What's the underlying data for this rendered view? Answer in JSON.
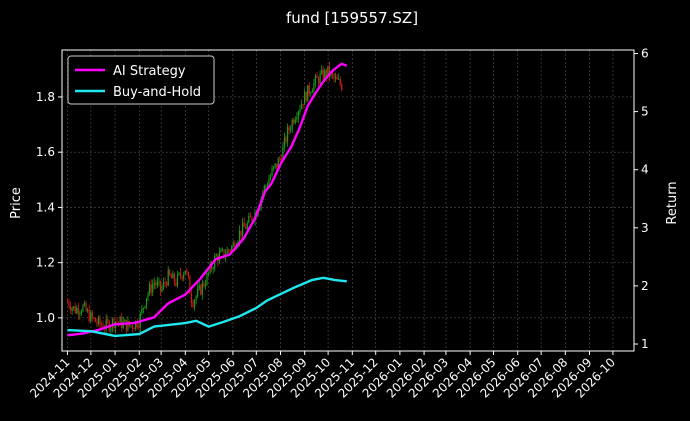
{
  "chart_data": {
    "type": "line",
    "title": "fund [159557.SZ]",
    "xlabel": "",
    "ylabel": "Price",
    "ylabel_right": "Return",
    "x_tick_labels": [
      "2024-11",
      "2024-12",
      "2025-01",
      "2025-02",
      "2025-03",
      "2025-04",
      "2025-05",
      "2025-06",
      "2025-07",
      "2025-08",
      "2025-09",
      "2025-10",
      "2025-11",
      "2025-12",
      "2026-01",
      "2026-02",
      "2026-03",
      "2026-04",
      "2026-05",
      "2026-06",
      "2026-07",
      "2026-08",
      "2026-09",
      "2026-10"
    ],
    "y_ticks_left": [
      "1.0",
      "1.2",
      "1.4",
      "1.6",
      "1.8"
    ],
    "y_ticks_right": [
      "1",
      "2",
      "3",
      "4",
      "5",
      "6"
    ],
    "ylim_left": [
      0.88,
      1.97
    ],
    "ylim_right": [
      0.88,
      6.06
    ],
    "grid": true,
    "legend": {
      "placement": "top-left",
      "entries": [
        "AI Strategy",
        "Buy-and-Hold"
      ]
    },
    "colors": {
      "background": "#000000",
      "text": "#ffffff",
      "grid": "#555555",
      "up": "#1a9e1a",
      "down": "#d11a1a",
      "ai": "#ff00ff",
      "bh": "#1ee8ee"
    },
    "series": [
      {
        "name": "AI Strategy",
        "axis": "right",
        "points": [
          [
            "2024-11-01",
            1.15
          ],
          [
            "2024-11-20",
            1.18
          ],
          [
            "2024-12-10",
            1.24
          ],
          [
            "2025-01-01",
            1.34
          ],
          [
            "2025-01-25",
            1.36
          ],
          [
            "2025-02-20",
            1.46
          ],
          [
            "2025-03-10",
            1.7
          ],
          [
            "2025-04-01",
            1.85
          ],
          [
            "2025-04-20",
            2.12
          ],
          [
            "2025-05-10",
            2.46
          ],
          [
            "2025-05-28",
            2.54
          ],
          [
            "2025-06-15",
            2.82
          ],
          [
            "2025-06-30",
            3.18
          ],
          [
            "2025-07-12",
            3.62
          ],
          [
            "2025-07-20",
            3.75
          ],
          [
            "2025-08-02",
            4.12
          ],
          [
            "2025-08-15",
            4.4
          ],
          [
            "2025-08-25",
            4.7
          ],
          [
            "2025-09-05",
            5.1
          ],
          [
            "2025-09-15",
            5.32
          ],
          [
            "2025-09-25",
            5.52
          ],
          [
            "2025-10-05",
            5.68
          ],
          [
            "2025-10-12",
            5.76
          ],
          [
            "2025-10-18",
            5.82
          ],
          [
            "2025-10-25",
            5.79
          ]
        ]
      },
      {
        "name": "Buy-and-Hold",
        "axis": "right",
        "points": [
          [
            "2024-11-01",
            1.24
          ],
          [
            "2024-12-01",
            1.22
          ],
          [
            "2025-01-01",
            1.14
          ],
          [
            "2025-02-01",
            1.17
          ],
          [
            "2025-02-20",
            1.3
          ],
          [
            "2025-04-01",
            1.36
          ],
          [
            "2025-04-15",
            1.4
          ],
          [
            "2025-05-01",
            1.3
          ],
          [
            "2025-05-20",
            1.38
          ],
          [
            "2025-06-10",
            1.48
          ],
          [
            "2025-07-01",
            1.62
          ],
          [
            "2025-07-15",
            1.75
          ],
          [
            "2025-08-01",
            1.86
          ],
          [
            "2025-08-20",
            1.98
          ],
          [
            "2025-09-10",
            2.1
          ],
          [
            "2025-09-25",
            2.14
          ],
          [
            "2025-10-10",
            2.1
          ],
          [
            "2025-10-25",
            2.08
          ]
        ]
      },
      {
        "name": "Price",
        "axis": "left",
        "kind": "bars",
        "points": [
          [
            "2024-11-01",
            1.06
          ],
          [
            "2024-11-10",
            1.03
          ],
          [
            "2024-11-20",
            1.04
          ],
          [
            "2024-12-01",
            1.0
          ],
          [
            "2024-12-10",
            0.98
          ],
          [
            "2024-12-20",
            0.97
          ],
          [
            "2025-01-01",
            0.99
          ],
          [
            "2025-01-10",
            0.98
          ],
          [
            "2025-01-20",
            0.97
          ],
          [
            "2025-02-01",
            0.99
          ],
          [
            "2025-02-10",
            1.08
          ],
          [
            "2025-02-20",
            1.13
          ],
          [
            "2025-03-01",
            1.1
          ],
          [
            "2025-03-10",
            1.15
          ],
          [
            "2025-03-20",
            1.13
          ],
          [
            "2025-04-01",
            1.18
          ],
          [
            "2025-04-10",
            1.06
          ],
          [
            "2025-04-20",
            1.1
          ],
          [
            "2025-05-01",
            1.16
          ],
          [
            "2025-05-10",
            1.22
          ],
          [
            "2025-05-20",
            1.23
          ],
          [
            "2025-06-01",
            1.26
          ],
          [
            "2025-06-10",
            1.31
          ],
          [
            "2025-06-20",
            1.34
          ],
          [
            "2025-07-01",
            1.39
          ],
          [
            "2025-07-10",
            1.46
          ],
          [
            "2025-07-20",
            1.52
          ],
          [
            "2025-08-01",
            1.58
          ],
          [
            "2025-08-10",
            1.67
          ],
          [
            "2025-08-20",
            1.74
          ],
          [
            "2025-09-01",
            1.8
          ],
          [
            "2025-09-10",
            1.84
          ],
          [
            "2025-09-20",
            1.87
          ],
          [
            "2025-10-01",
            1.89
          ],
          [
            "2025-10-10",
            1.86
          ],
          [
            "2025-10-20",
            1.84
          ]
        ]
      }
    ]
  }
}
